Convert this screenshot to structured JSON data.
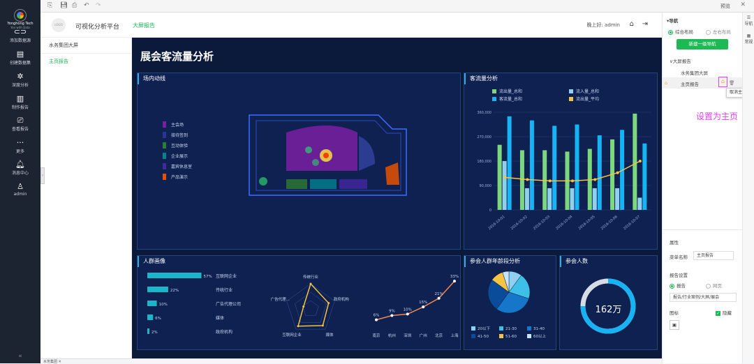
{
  "brand": {
    "name": "Yonghong Tech",
    "tagline": "Yon with Data"
  },
  "sidebar": {
    "items": [
      {
        "label": "添加数据源",
        "icon": "link-icon"
      },
      {
        "label": "创建数据集",
        "icon": "dataset-icon"
      },
      {
        "label": "深度分析",
        "icon": "analysis-icon"
      },
      {
        "label": "制作报告",
        "icon": "chart-icon"
      },
      {
        "label": "查看报告",
        "icon": "view-report-icon"
      },
      {
        "label": "更多",
        "icon": "more-icon"
      },
      {
        "label": "消息中心",
        "icon": "bell-icon"
      },
      {
        "label": "admin",
        "icon": "user-icon"
      }
    ],
    "collapse": "«"
  },
  "topbar": {
    "preview": "预览"
  },
  "header": {
    "logo": "LOGO",
    "app_title": "可视化分析平台",
    "tab": "大屏报告",
    "greeting": "晚上好: admin"
  },
  "pages": {
    "items": [
      "水务集团大屏",
      "主页报告"
    ],
    "active": 1
  },
  "screen": {
    "title": "展会客流量分析",
    "flow_panel": {
      "title": "场内动线",
      "legend": [
        {
          "label": "主会场",
          "color": "#7b1fa2"
        },
        {
          "label": "接待签到",
          "color": "#283593"
        },
        {
          "label": "互动体验",
          "color": "#2e7d32"
        },
        {
          "label": "企业展示",
          "color": "#00838f"
        },
        {
          "label": "嘉宾休息室",
          "color": "#4527a0"
        },
        {
          "label": "产品演示",
          "color": "#e65100"
        }
      ]
    },
    "traffic_panel": {
      "title": "客流量分析"
    },
    "portrait_panel": {
      "title": "人群画像"
    },
    "age_panel": {
      "title": "参会人群年龄段分析"
    },
    "attendance_panel": {
      "title": "参会人数",
      "value": "162万",
      "ratio": 0.75
    }
  },
  "chart_data": [
    {
      "type": "bar",
      "title": "客流量分析",
      "categories": [
        "2016-10-01",
        "2016-10-02",
        "2016-10-03",
        "2016-10-04",
        "2016-10-05",
        "2016-10-06",
        "2016-10-07"
      ],
      "series": [
        {
          "name": "流出量_总和",
          "type": "bar",
          "color": "#7dd87d",
          "values": [
            240000,
            220000,
            220000,
            215000,
            225000,
            260000,
            355000
          ]
        },
        {
          "name": "流入量_总和",
          "type": "bar",
          "color": "#8fd0f0",
          "values": [
            180000,
            80000,
            80000,
            80000,
            80000,
            80000,
            45000
          ]
        },
        {
          "name": "客流量_总和",
          "type": "bar",
          "color": "#16b3f5",
          "values": [
            345000,
            330000,
            310000,
            315000,
            275000,
            295000,
            245000
          ]
        },
        {
          "name": "流出量_平均",
          "type": "line",
          "color": "#f6c342",
          "values": [
            120000,
            112000,
            107000,
            107000,
            112000,
            137000,
            180000
          ]
        }
      ],
      "yticks": [
        "0",
        "90,000",
        "180,000",
        "270,000",
        "360,000"
      ],
      "ylim": [
        0,
        360000
      ]
    },
    {
      "type": "bar",
      "title": "人群画像",
      "orientation": "horizontal",
      "categories": [
        "互联网企业",
        "传统行业",
        "广告代理公司",
        "媒体",
        "政府机构"
      ],
      "values": [
        57,
        22,
        10,
        6,
        2
      ],
      "labels": [
        "57%",
        "22%",
        "10%",
        "6%",
        "2%"
      ],
      "xlim": [
        0,
        100
      ]
    },
    {
      "type": "radar",
      "title": "人群画像",
      "axes": [
        "传统行业",
        "政府机构",
        "媒体",
        "互联网企业",
        "广告代理..."
      ],
      "values": [
        1.0,
        0.75,
        0.82,
        0.85,
        0.3
      ]
    },
    {
      "type": "line",
      "title": "人群画像",
      "categories": [
        "南京",
        "杭州",
        "深圳",
        "广州",
        "北京",
        "上海"
      ],
      "values": [
        6,
        9,
        10,
        15,
        21,
        33
      ],
      "labels": [
        "6%",
        "9%",
        "10%",
        "15%",
        "21%",
        "33%"
      ],
      "ylim": [
        0,
        35
      ]
    },
    {
      "type": "pie",
      "title": "参会人群年龄段分析",
      "categories": [
        "20以下",
        "21-30",
        "31-40",
        "41-50",
        "51-60",
        "60以上"
      ],
      "values": [
        10,
        20,
        30,
        25,
        10,
        5
      ],
      "colors": [
        "#8fd0f0",
        "#3dbfe8",
        "#1676c9",
        "#0a4b9a",
        "#f6c342",
        "#c6e3ff"
      ]
    }
  ],
  "right_panel": {
    "nav_title": "导航",
    "layout_option_1": "综合布局",
    "layout_option_2": "左右布局",
    "new_nav_button": "新建一级导航",
    "tree_group": "大屏报告",
    "tree_child": "水务集团大屏",
    "tree_selected": "主页报告",
    "tooltip": "取消主页",
    "annotation": "设置为主页",
    "attr_title": "属性",
    "menu_name_label": "菜单名称",
    "menu_name_value": "主页报告",
    "report_settings_label": "报告设置",
    "report_option": "报告",
    "web_option": "网页",
    "report_path": "报告/行业案例/大屏/展会",
    "icon_label": "图标",
    "hide_label": "隐藏",
    "vtab_nav": "导航",
    "vtab_general": "常规"
  },
  "bottom_tab": "水务集团"
}
